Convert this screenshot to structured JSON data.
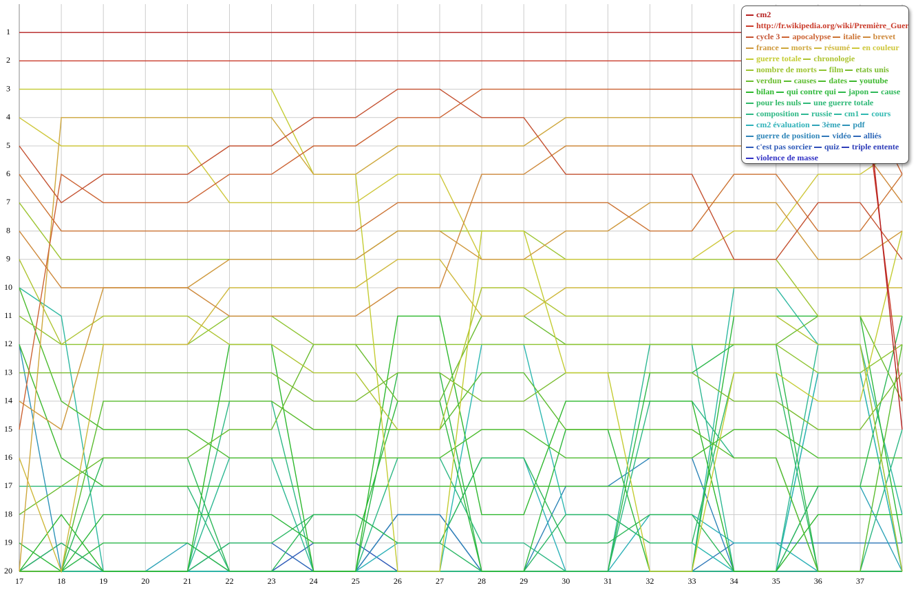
{
  "chart_data": {
    "type": "line",
    "categories": [
      "17",
      "18",
      "19",
      "20",
      "21",
      "22",
      "23",
      "24",
      "25",
      "26",
      "27",
      "28",
      "29",
      "30",
      "31",
      "32",
      "33",
      "34",
      "35",
      "36",
      "37",
      null
    ],
    "ylim": [
      20,
      0
    ],
    "yticks": [
      1,
      2,
      3,
      4,
      5,
      6,
      7,
      8,
      9,
      10,
      11,
      12,
      13,
      14,
      15,
      16,
      17,
      18,
      19,
      20
    ],
    "grid": true,
    "legend": "top-right",
    "series": [
      {
        "name": "cm2",
        "color": "hsl(0,70%,42%)",
        "values": [
          1,
          1,
          1,
          1,
          1,
          1,
          1,
          1,
          1,
          1,
          1,
          1,
          1,
          1,
          1,
          1,
          1,
          1,
          1,
          1,
          1,
          15
        ]
      },
      {
        "name": "http://fr.wikipedia.org/wiki/Première_Guer",
        "color": "hsl(6,65%,48%)",
        "values": [
          2,
          2,
          2,
          2,
          2,
          2,
          2,
          2,
          2,
          2,
          2,
          2,
          2,
          2,
          2,
          2,
          2,
          2,
          2,
          2,
          2,
          14
        ]
      },
      {
        "name": "cycle 3",
        "color": "hsl(13,60%,48%)",
        "values": [
          5,
          7,
          6,
          6,
          6,
          5,
          5,
          4,
          4,
          3,
          3,
          4,
          4,
          6,
          6,
          6,
          6,
          9,
          9,
          7,
          7,
          9
        ]
      },
      {
        "name": "apocalypse",
        "color": "hsl(19,60%,50%)",
        "values": [
          15,
          6,
          7,
          7,
          7,
          6,
          6,
          5,
          5,
          4,
          4,
          3,
          3,
          3,
          3,
          3,
          3,
          3,
          3,
          3,
          3,
          6
        ]
      },
      {
        "name": "italie",
        "color": "hsl(25,60%,50%)",
        "values": [
          6,
          8,
          8,
          8,
          8,
          8,
          8,
          8,
          8,
          7,
          7,
          7,
          7,
          7,
          7,
          8,
          8,
          6,
          6,
          8,
          8,
          6
        ]
      },
      {
        "name": "brevet",
        "color": "hsl(32,60%,52%)",
        "values": [
          8,
          10,
          10,
          10,
          10,
          11,
          11,
          11,
          11,
          10,
          10,
          6,
          6,
          5,
          5,
          5,
          5,
          5,
          5,
          5,
          5,
          7
        ]
      },
      {
        "name": "france",
        "color": "hsl(38,60%,52%)",
        "values": [
          14,
          15,
          10,
          10,
          10,
          9,
          9,
          9,
          9,
          8,
          8,
          9,
          9,
          8,
          8,
          7,
          7,
          7,
          7,
          9,
          9,
          8
        ]
      },
      {
        "name": "morts",
        "color": "hsl(44,60%,52%)",
        "values": [
          20,
          4,
          4,
          4,
          4,
          4,
          4,
          6,
          6,
          5,
          5,
          5,
          5,
          4,
          4,
          4,
          4,
          4,
          4,
          4,
          4,
          4
        ]
      },
      {
        "name": "résumé",
        "color": "hsl(51,60%,52%)",
        "values": [
          16,
          20,
          12,
          12,
          12,
          10,
          10,
          10,
          10,
          9,
          9,
          11,
          11,
          10,
          10,
          10,
          10,
          10,
          10,
          10,
          10,
          10
        ]
      },
      {
        "name": "en couleur",
        "color": "hsl(57,60%,52%)",
        "values": [
          4,
          5,
          5,
          5,
          5,
          7,
          7,
          7,
          7,
          6,
          6,
          9,
          9,
          9,
          9,
          9,
          9,
          8,
          8,
          6,
          6,
          5
        ]
      },
      {
        "name": "guerre totale",
        "color": "hsl(63,60%,50%)",
        "values": [
          3,
          3,
          3,
          3,
          3,
          3,
          3,
          6,
          6,
          20,
          20,
          8,
          8,
          13,
          13,
          20,
          20,
          13,
          13,
          14,
          14,
          8
        ]
      },
      {
        "name": "chronologie",
        "color": "hsl(69,60%,48%)",
        "values": [
          9,
          12,
          11,
          11,
          11,
          12,
          12,
          13,
          13,
          15,
          15,
          10,
          10,
          11,
          11,
          11,
          11,
          11,
          11,
          12,
          12,
          20
        ]
      },
      {
        "name": "nombre de morts",
        "color": "hsl(76,60%,48%)",
        "values": [
          7,
          9,
          9,
          9,
          9,
          9,
          9,
          9,
          9,
          8,
          8,
          8,
          8,
          9,
          9,
          9,
          9,
          9,
          9,
          11,
          11,
          11
        ]
      },
      {
        "name": "film",
        "color": "hsl(82,60%,48%)",
        "values": [
          11,
          12,
          12,
          12,
          12,
          11,
          11,
          12,
          12,
          12,
          12,
          12,
          12,
          12,
          12,
          12,
          12,
          12,
          12,
          13,
          13,
          12
        ]
      },
      {
        "name": "etats unis",
        "color": "hsl(88,60%,46%)",
        "values": [
          13,
          13,
          13,
          13,
          13,
          13,
          13,
          14,
          14,
          13,
          13,
          14,
          14,
          13,
          13,
          13,
          13,
          14,
          14,
          15,
          15,
          13
        ]
      },
      {
        "name": "verdun",
        "color": "hsl(95,60%,46%)",
        "values": [
          18,
          17,
          16,
          16,
          16,
          15,
          15,
          12,
          12,
          14,
          14,
          11,
          11,
          12,
          12,
          12,
          12,
          12,
          12,
          11,
          11,
          14
        ]
      },
      {
        "name": "causes",
        "color": "hsl(101,60%,46%)",
        "values": [
          20,
          20,
          14,
          14,
          14,
          14,
          14,
          15,
          15,
          15,
          15,
          13,
          13,
          15,
          15,
          15,
          15,
          16,
          16,
          20,
          20,
          12
        ]
      },
      {
        "name": "dates",
        "color": "hsl(107,60%,46%)",
        "values": [
          10,
          14,
          15,
          15,
          15,
          16,
          16,
          16,
          16,
          16,
          16,
          15,
          15,
          16,
          16,
          16,
          16,
          15,
          15,
          16,
          16,
          16
        ]
      },
      {
        "name": "youtube",
        "color": "hsl(114,60%,45%)",
        "values": [
          12,
          16,
          17,
          17,
          17,
          17,
          17,
          17,
          17,
          17,
          17,
          17,
          17,
          17,
          17,
          17,
          17,
          17,
          17,
          17,
          17,
          17
        ]
      },
      {
        "name": "bilan",
        "color": "hsl(120,60%,45%)",
        "values": [
          20,
          18,
          20,
          20,
          20,
          12,
          12,
          20,
          20,
          11,
          11,
          18,
          18,
          14,
          14,
          14,
          14,
          20,
          20,
          18,
          18,
          18
        ]
      },
      {
        "name": "qui contre qui",
        "color": "hsl(126,60%,45%)",
        "values": [
          19,
          20,
          18,
          18,
          18,
          18,
          18,
          19,
          19,
          14,
          14,
          20,
          20,
          15,
          15,
          20,
          20,
          11,
          11,
          11,
          11,
          19
        ]
      },
      {
        "name": "japon",
        "color": "hsl(133,60%,45%)",
        "values": [
          20,
          20,
          19,
          19,
          19,
          20,
          20,
          20,
          20,
          13,
          13,
          20,
          20,
          20,
          20,
          13,
          13,
          12,
          12,
          20,
          20,
          20
        ]
      },
      {
        "name": "cause",
        "color": "hsl(139,60%,45%)",
        "values": [
          20,
          20,
          16,
          16,
          16,
          20,
          20,
          18,
          18,
          19,
          19,
          16,
          16,
          19,
          19,
          18,
          18,
          20,
          20,
          17,
          17,
          11
        ]
      },
      {
        "name": "pour les nuls",
        "color": "hsl(145,60%,45%)",
        "values": [
          20,
          19,
          20,
          20,
          20,
          19,
          19,
          18,
          18,
          19,
          19,
          20,
          20,
          18,
          18,
          19,
          19,
          13,
          13,
          20,
          20,
          20
        ]
      },
      {
        "name": "une guerre totale",
        "color": "hsl(152,60%,45%)",
        "values": [
          17,
          17,
          17,
          17,
          17,
          20,
          20,
          20,
          20,
          20,
          20,
          20,
          20,
          20,
          20,
          20,
          20,
          20,
          20,
          20,
          20,
          20
        ]
      },
      {
        "name": "composition",
        "color": "hsl(158,60%,45%)",
        "values": [
          20,
          20,
          20,
          20,
          20,
          14,
          14,
          20,
          20,
          16,
          16,
          19,
          19,
          20,
          20,
          14,
          14,
          16,
          16,
          20,
          20,
          15
        ]
      },
      {
        "name": "russie",
        "color": "hsl(164,60%,45%)",
        "values": [
          20,
          20,
          20,
          20,
          20,
          16,
          16,
          20,
          20,
          20,
          20,
          20,
          20,
          20,
          20,
          12,
          12,
          20,
          20,
          12,
          12,
          20
        ]
      },
      {
        "name": "cm1",
        "color": "hsl(170,60%,45%)",
        "values": [
          10,
          11,
          20,
          20,
          20,
          20,
          20,
          20,
          20,
          20,
          20,
          20,
          20,
          20,
          20,
          20,
          20,
          10,
          10,
          12,
          12,
          18
        ]
      },
      {
        "name": "cours",
        "color": "hsl(177,60%,45%)",
        "values": [
          20,
          20,
          20,
          20,
          20,
          20,
          20,
          20,
          20,
          20,
          20,
          12,
          12,
          18,
          18,
          19,
          19,
          20,
          20,
          13,
          13,
          20
        ]
      },
      {
        "name": "cm2 évaluation",
        "color": "hsl(183,60%,45%)",
        "values": [
          20,
          20,
          20,
          20,
          20,
          20,
          20,
          20,
          20,
          19,
          19,
          16,
          16,
          20,
          20,
          18,
          18,
          19,
          19,
          20,
          20,
          20
        ]
      },
      {
        "name": "3ème",
        "color": "hsl(189,60%,45%)",
        "values": [
          20,
          20,
          20,
          20,
          19,
          20,
          20,
          20,
          20,
          20,
          20,
          20,
          20,
          20,
          20,
          20,
          20,
          20,
          20,
          17,
          17,
          20
        ]
      },
      {
        "name": "pdf",
        "color": "hsl(196,60%,45%)",
        "values": [
          12,
          20,
          20,
          20,
          20,
          20,
          20,
          20,
          20,
          20,
          20,
          20,
          20,
          20,
          20,
          20,
          20,
          20,
          20,
          13,
          13,
          20
        ]
      },
      {
        "name": "guerre de position",
        "color": "hsl(202,60%,45%)",
        "values": [
          20,
          20,
          20,
          20,
          20,
          20,
          20,
          20,
          20,
          18,
          18,
          20,
          20,
          17,
          17,
          16,
          16,
          20,
          20,
          20,
          20,
          20
        ]
      },
      {
        "name": "vidéo",
        "color": "hsl(208,60%,45%)",
        "values": [
          20,
          20,
          20,
          20,
          20,
          20,
          20,
          20,
          20,
          20,
          20,
          20,
          20,
          20,
          20,
          20,
          20,
          19,
          19,
          19,
          19,
          19
        ]
      },
      {
        "name": "alliés",
        "color": "hsl(215,60%,45%)",
        "values": [
          20,
          20,
          20,
          20,
          20,
          19,
          19,
          20,
          20,
          20,
          20,
          20,
          20,
          20,
          20,
          20,
          20,
          20,
          20,
          20,
          20,
          20
        ]
      },
      {
        "name": "c'est pas sorcier",
        "color": "hsl(221,60%,45%)",
        "values": [
          20,
          20,
          20,
          20,
          20,
          20,
          20,
          19,
          19,
          20,
          20,
          20,
          20,
          20,
          20,
          20,
          20,
          20,
          20,
          20,
          20,
          20
        ]
      },
      {
        "name": "quiz",
        "color": "hsl(227,60%,45%)",
        "values": [
          20,
          19,
          20,
          20,
          20,
          20,
          20,
          20,
          20,
          20,
          20,
          20,
          20,
          20,
          20,
          20,
          20,
          20,
          20,
          20,
          20,
          20
        ]
      },
      {
        "name": "triple entente",
        "color": "hsl(234,60%,45%)",
        "values": [
          20,
          20,
          20,
          20,
          20,
          20,
          20,
          20,
          20,
          18,
          18,
          20,
          20,
          20,
          20,
          20,
          20,
          20,
          20,
          20,
          20,
          20
        ]
      },
      {
        "name": "violence de masse",
        "color": "hsl(240,60%,48%)",
        "values": [
          20,
          20,
          20,
          20,
          20,
          20,
          20,
          20,
          20,
          20,
          20,
          20,
          20,
          20,
          20,
          20,
          20,
          20,
          20,
          20,
          20,
          20
        ]
      }
    ]
  }
}
